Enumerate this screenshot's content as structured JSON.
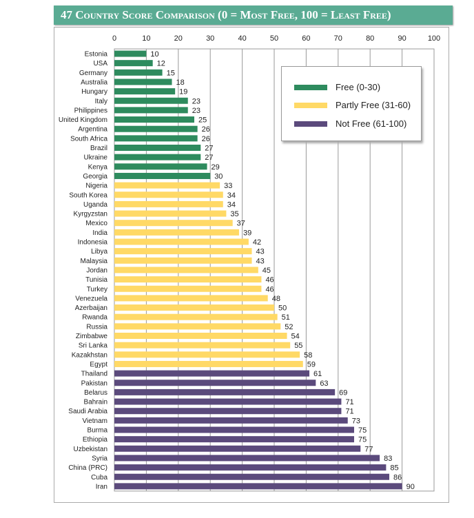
{
  "chart_data": {
    "type": "bar",
    "orientation": "horizontal",
    "title": "47 Country Score Comparison (0 = Most Free, 100 = Least Free)",
    "xlim": [
      0,
      100
    ],
    "x_ticks": [
      0,
      10,
      20,
      30,
      40,
      50,
      60,
      70,
      80,
      90,
      100
    ],
    "grid": true,
    "legend_position": "top-right",
    "legend": [
      {
        "name": "Free (0-30)",
        "color": "#2e8b5e"
      },
      {
        "name": "Partly Free (31-60)",
        "color": "#ffd966"
      },
      {
        "name": "Not Free (61-100)",
        "color": "#5b4a7c"
      }
    ],
    "categories": [
      "Estonia",
      "USA",
      "Germany",
      "Australia",
      "Hungary",
      "Italy",
      "Philippines",
      "United Kingdom",
      "Argentina",
      "South Africa",
      "Brazil",
      "Ukraine",
      "Kenya",
      "Georgia",
      "Nigeria",
      "South Korea",
      "Uganda",
      "Kyrgyzstan",
      "Mexico",
      "India",
      "Indonesia",
      "Libya",
      "Malaysia",
      "Jordan",
      "Tunisia",
      "Turkey",
      "Venezuela",
      "Azerbaijan",
      "Rwanda",
      "Russia",
      "Zimbabwe",
      "Sri Lanka",
      "Kazakhstan",
      "Egypt",
      "Thailand",
      "Pakistan",
      "Belarus",
      "Bahrain",
      "Saudi Arabia",
      "Vietnam",
      "Burma",
      "Ethiopia",
      "Uzbekistan",
      "Syria",
      "China (PRC)",
      "Cuba",
      "Iran"
    ],
    "values": [
      10,
      12,
      15,
      18,
      19,
      23,
      23,
      25,
      26,
      26,
      27,
      27,
      29,
      30,
      33,
      34,
      34,
      35,
      37,
      39,
      42,
      43,
      43,
      45,
      46,
      46,
      48,
      50,
      51,
      52,
      54,
      55,
      58,
      59,
      61,
      63,
      69,
      71,
      71,
      73,
      75,
      75,
      77,
      83,
      85,
      86,
      90
    ]
  }
}
